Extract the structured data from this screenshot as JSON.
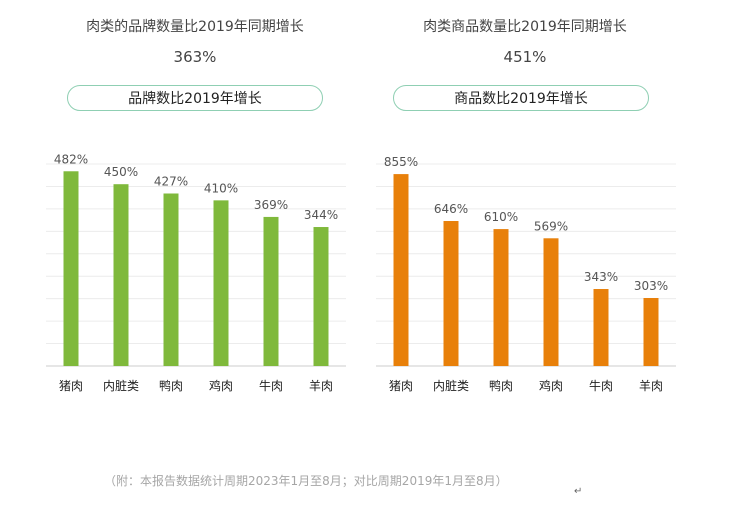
{
  "colors": {
    "left_bar": "#7fb93b",
    "right_bar": "#e8800a",
    "grid": "#ececec",
    "axis": "#cccccc",
    "pill_border": "#8fcfb3"
  },
  "panels": [
    {
      "title": "肉类的品牌数量比2019年同期增长",
      "value": "363%",
      "pill": "品牌数比2019年增长"
    },
    {
      "title": "肉类商品数量比2019年同期增长",
      "value": "451%",
      "pill": "商品数比2019年增长"
    }
  ],
  "chart_data": [
    {
      "type": "bar",
      "categories": [
        "猪肉",
        "内脏类",
        "鸭肉",
        "鸡肉",
        "牛肉",
        "羊肉"
      ],
      "values": [
        482,
        450,
        427,
        410,
        369,
        344
      ],
      "value_labels": [
        "482%",
        "450%",
        "427%",
        "410%",
        "369%",
        "344%"
      ],
      "ylim": [
        0,
        500
      ],
      "grid": true
    },
    {
      "type": "bar",
      "categories": [
        "猪肉",
        "内脏类",
        "鸭肉",
        "鸡肉",
        "牛肉",
        "羊肉"
      ],
      "values": [
        855,
        646,
        610,
        569,
        343,
        303
      ],
      "value_labels": [
        "855%",
        "646%",
        "610%",
        "569%",
        "343%",
        "303%"
      ],
      "ylim": [
        0,
        900
      ],
      "grid": true
    }
  ],
  "footnote": "（附：本报告数据统计周期2023年1月至8月；对比周期2019年1月至8月）",
  "return_mark": "↵"
}
